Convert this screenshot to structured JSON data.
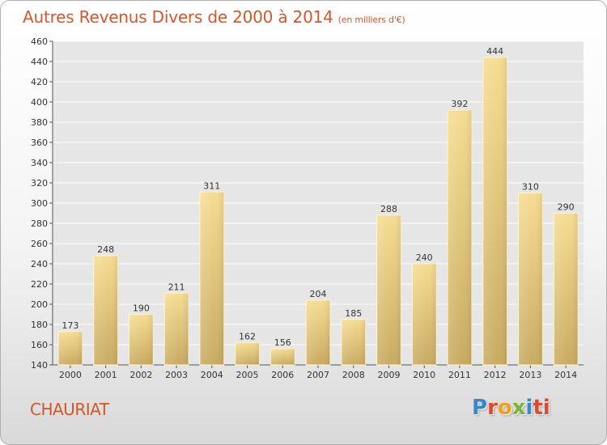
{
  "chart_data": {
    "type": "bar",
    "title": "Autres Revenus Divers de 2000 à 2014",
    "subtitle": "(en milliers d'€)",
    "categories": [
      "2000",
      "2001",
      "2002",
      "2003",
      "2004",
      "2005",
      "2006",
      "2007",
      "2008",
      "2009",
      "2010",
      "2011",
      "2012",
      "2013",
      "2014"
    ],
    "values": [
      173,
      248,
      190,
      211,
      311,
      162,
      156,
      204,
      185,
      288,
      240,
      392,
      444,
      310,
      290
    ],
    "yticks": [
      140,
      160,
      180,
      200,
      220,
      240,
      260,
      280,
      300,
      320,
      340,
      360,
      380,
      400,
      420,
      440,
      460
    ],
    "ylim": [
      140,
      460
    ],
    "grid": true,
    "bar_color": "#e8c97a",
    "xlabel": "",
    "ylabel": ""
  },
  "location": "CHAURIAT",
  "logo": {
    "letters": [
      "P",
      "r",
      "o",
      "x",
      "i",
      "ti"
    ]
  },
  "colors": {
    "title": "#d2572d",
    "axis_text": "#333333",
    "grid": "#ffffff"
  }
}
